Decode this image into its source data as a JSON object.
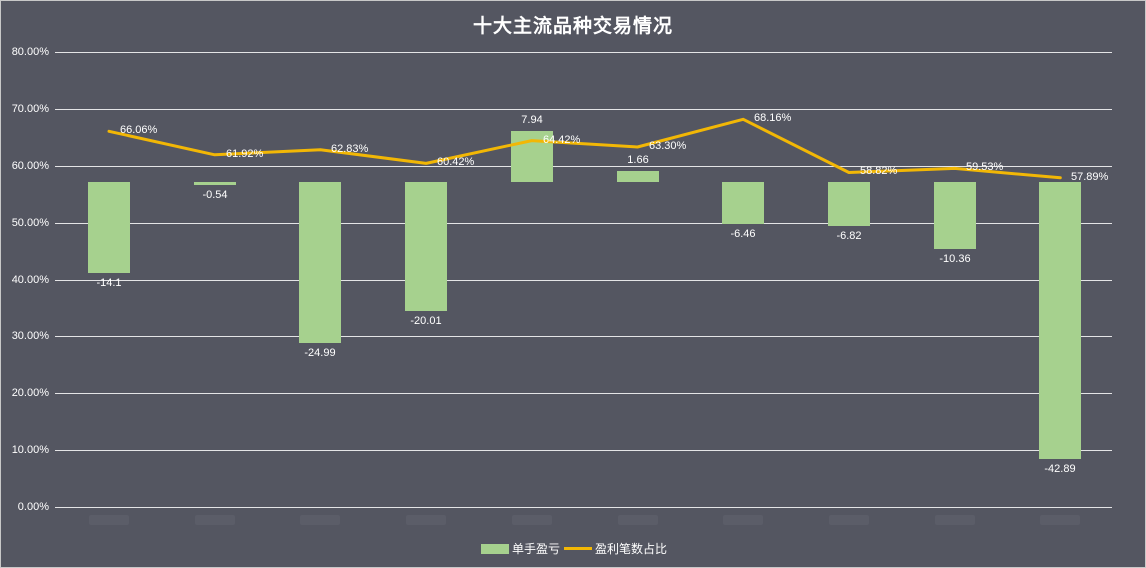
{
  "chart_data": {
    "type": "bar+line",
    "title": "十大主流品种交易情况",
    "categories": [
      "",
      "",
      "",
      "",
      "",
      "",
      "",
      "",
      "",
      ""
    ],
    "series": [
      {
        "name": "单手盈亏",
        "type": "bar",
        "axis": "secondary",
        "color": "#a6d18e",
        "values": [
          -14.1,
          -0.54,
          -24.99,
          -20.01,
          7.94,
          1.66,
          -6.46,
          -6.82,
          -10.36,
          -42.89
        ],
        "labels": [
          "-14.1",
          "-0.54",
          "-24.99",
          "-20.01",
          "7.94",
          "1.66",
          "-6.46",
          "-6.82",
          "-10.36",
          "-42.89"
        ]
      },
      {
        "name": "盈利笔数占比",
        "type": "line",
        "axis": "primary",
        "color": "#f2b705",
        "values": [
          66.06,
          61.92,
          62.83,
          60.42,
          64.42,
          63.3,
          68.16,
          58.82,
          59.53,
          57.89
        ],
        "labels": [
          "66.06%",
          "61.92%",
          "62.83%",
          "60.42%",
          "64.42%",
          "63.30%",
          "68.16%",
          "58.82%",
          "59.53%",
          "57.89%"
        ]
      }
    ],
    "yaxis": {
      "ticks": [
        "0.00%",
        "10.00%",
        "20.00%",
        "30.00%",
        "40.00%",
        "50.00%",
        "60.00%",
        "70.00%",
        "80.00%"
      ],
      "ylim": [
        0,
        80
      ]
    },
    "grid": true,
    "legend_position": "bottom",
    "xlabel": "",
    "ylabel": ""
  },
  "legend": {
    "bar": "单手盈亏",
    "line": "盈利笔数占比"
  }
}
